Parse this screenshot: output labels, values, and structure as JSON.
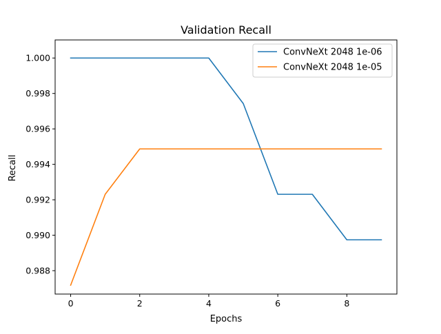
{
  "chart_data": {
    "type": "line",
    "title": "Validation Recall",
    "xlabel": "Epochs",
    "ylabel": "Recall",
    "x": [
      0,
      1,
      2,
      3,
      4,
      5,
      6,
      7,
      8,
      9
    ],
    "xlim": [
      -0.45,
      9.45
    ],
    "ylim": [
      0.98668,
      1.00102
    ],
    "xticks": [
      0,
      2,
      4,
      6,
      8
    ],
    "xtick_labels": [
      "0",
      "2",
      "4",
      "6",
      "8"
    ],
    "yticks": [
      0.988,
      0.99,
      0.992,
      0.994,
      0.996,
      0.998,
      1.0
    ],
    "ytick_labels": [
      "0.988",
      "0.990",
      "0.992",
      "0.994",
      "0.996",
      "0.998",
      "1.000"
    ],
    "grid": false,
    "legend_position": "upper right",
    "series": [
      {
        "name": "ConvNeXt 2048 1e-06",
        "color": "#1f77b4",
        "values": [
          1.0,
          1.0,
          1.0,
          1.0,
          1.0,
          0.99743,
          0.99231,
          0.99231,
          0.98974,
          0.98974
        ]
      },
      {
        "name": "ConvNeXt 2048 1e-05",
        "color": "#ff7f0e",
        "values": [
          0.98718,
          0.99231,
          0.99487,
          0.99487,
          0.99487,
          0.99487,
          0.99487,
          0.99487,
          0.99487,
          0.99487
        ]
      }
    ]
  }
}
